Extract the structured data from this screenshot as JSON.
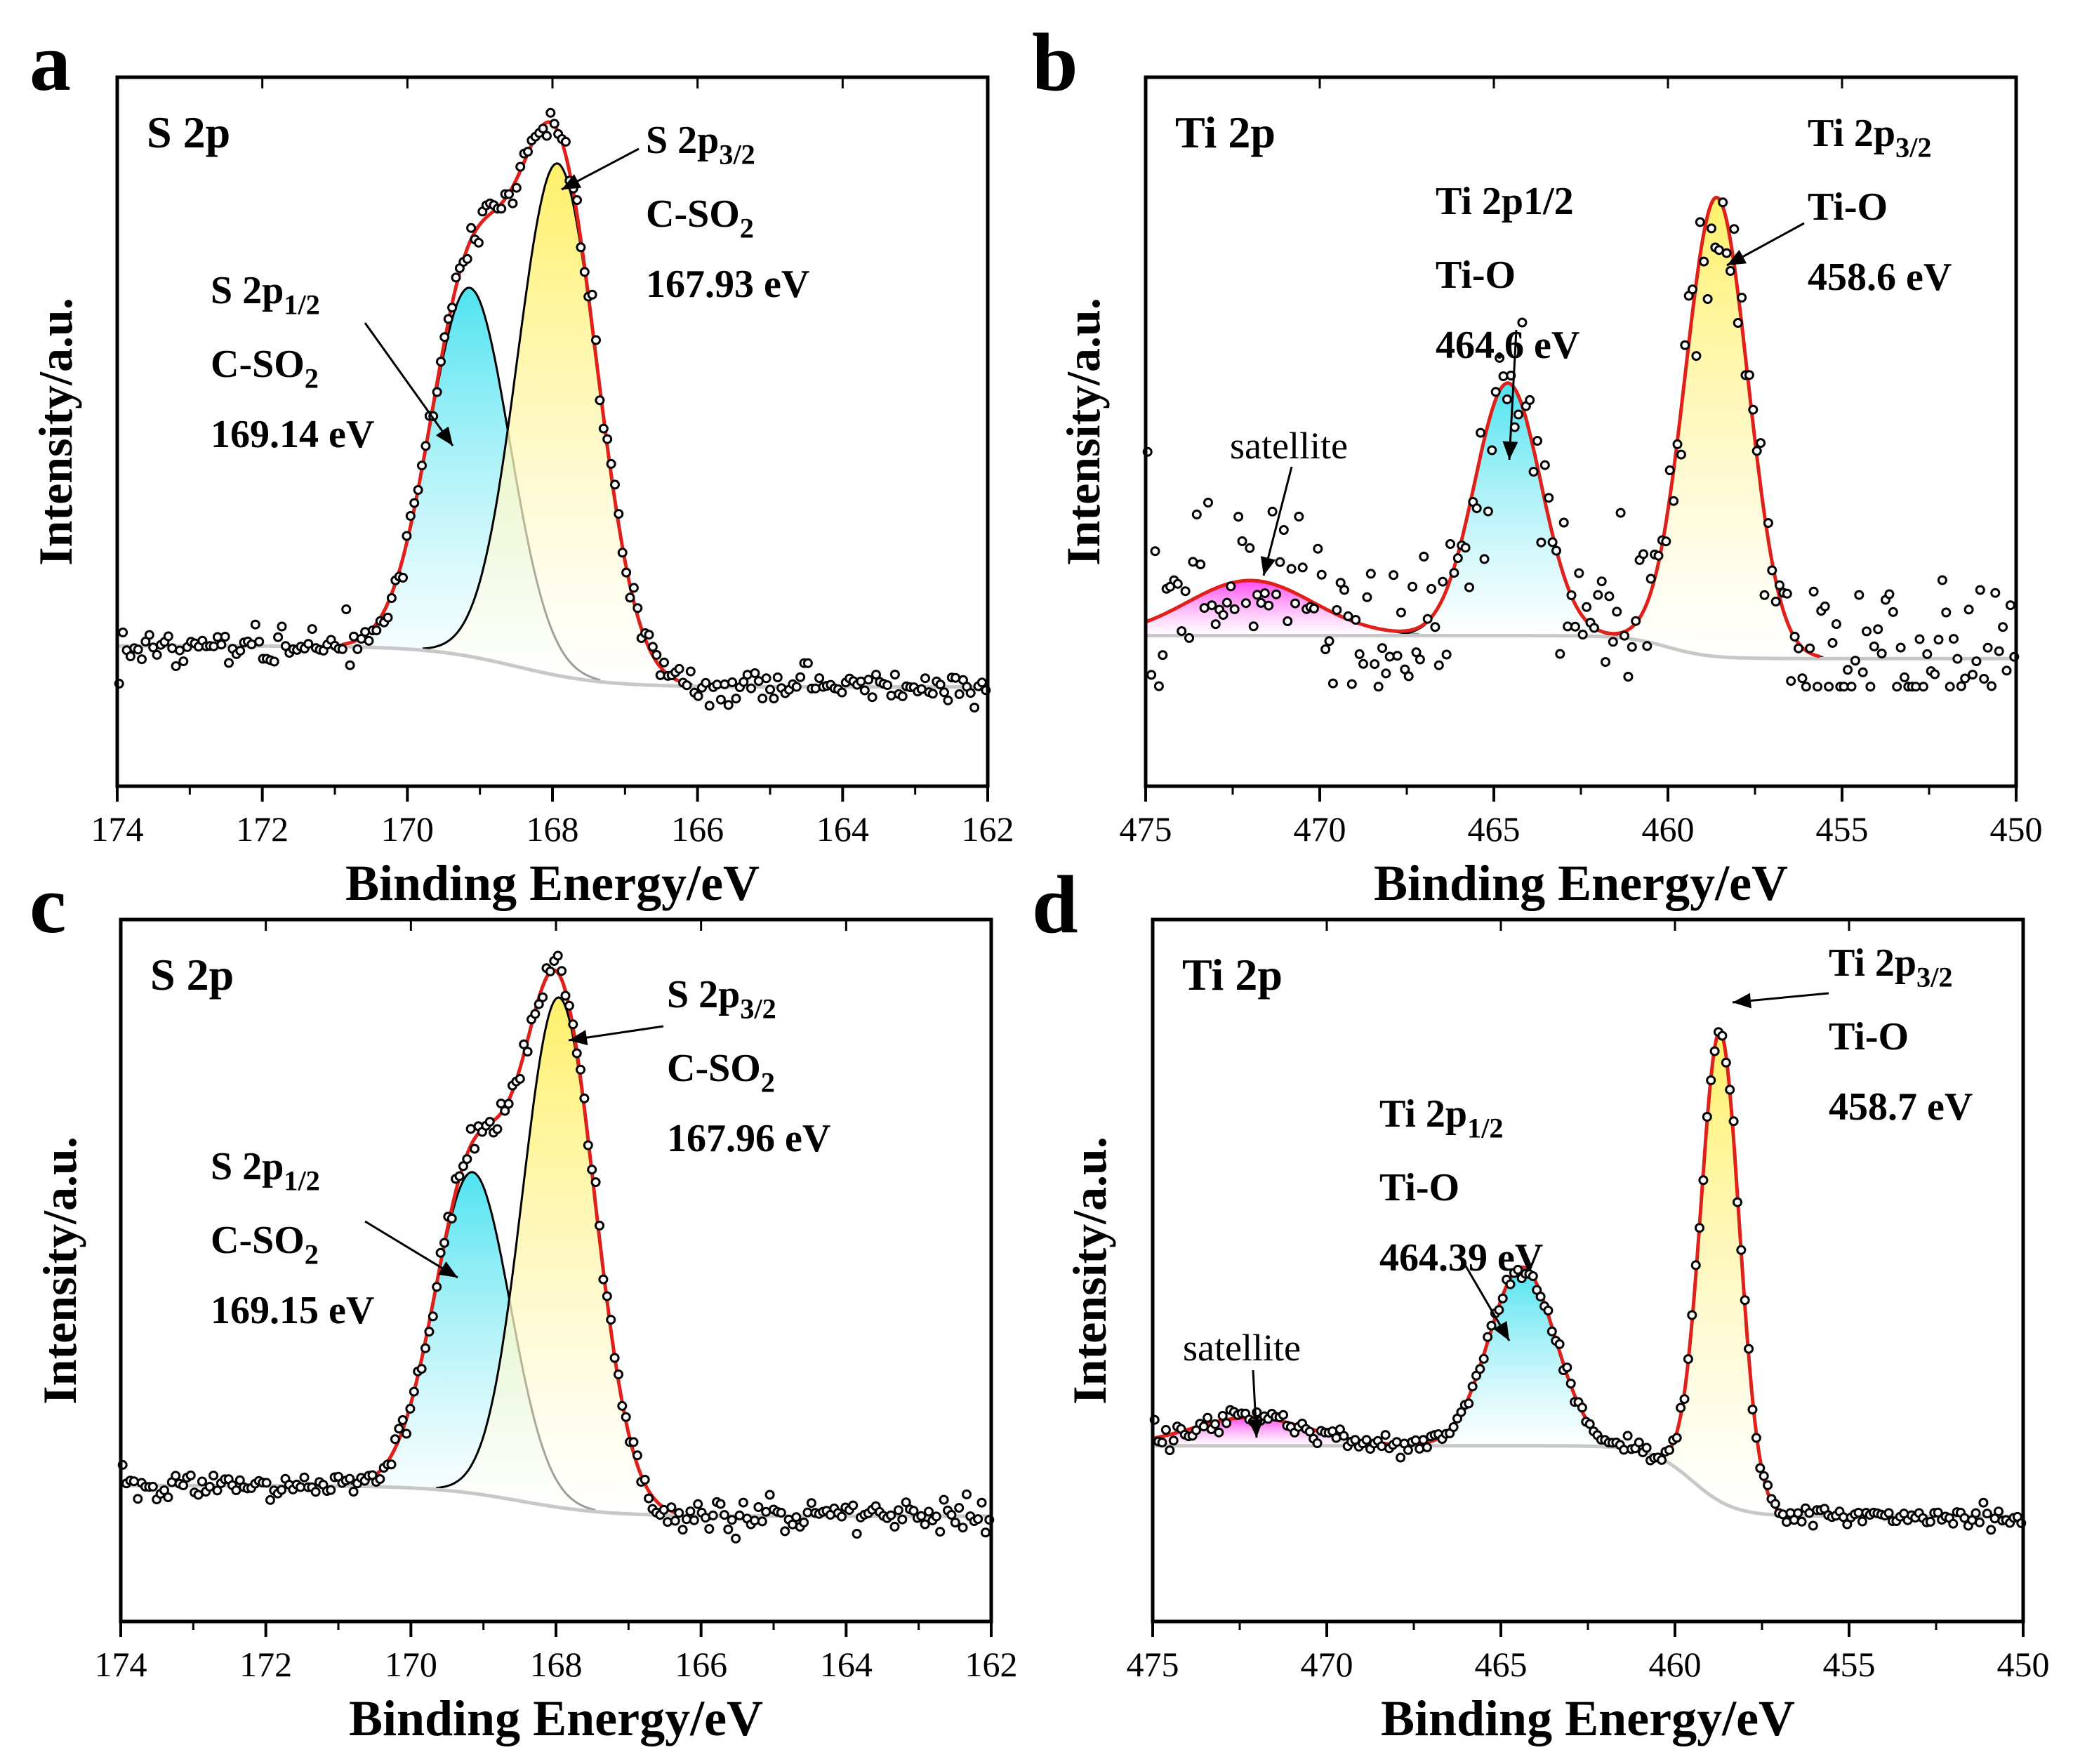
{
  "figure": {
    "panels": [
      "a",
      "b",
      "c",
      "d"
    ]
  },
  "chart_data": [
    {
      "panel": "a",
      "type": "line",
      "title": "S 2p",
      "xlabel": "Binding Energy/eV",
      "ylabel": "Intensity/a.u.",
      "xlim": [
        174,
        162
      ],
      "xticks": [
        174,
        172,
        170,
        168,
        166,
        164,
        162
      ],
      "baseline": {
        "left": 0.08,
        "right": 0.0,
        "step_at": 168.5
      },
      "peaks": [
        {
          "name": "S 2p1/2",
          "center": 169.14,
          "sigma": 0.55,
          "height": 0.72,
          "color": "#4fe3f0"
        },
        {
          "name": "S 2p3/2",
          "center": 167.93,
          "sigma": 0.55,
          "height": 1.0,
          "color": "#fff06a"
        }
      ],
      "noise": 0.018,
      "seed": 11,
      "labels": [
        {
          "main": "S 2p",
          "sub": "3/2",
          "line2": "C-SO",
          "line2sub": "2",
          "line3": "167.93 eV"
        },
        {
          "main": "S 2p",
          "sub": "1/2",
          "line2": "C-SO",
          "line2sub": "2",
          "line3": "169.14 eV"
        }
      ]
    },
    {
      "panel": "b",
      "type": "line",
      "title": "Ti 2p",
      "xlabel": "Binding Energy/eV",
      "ylabel": "Intensity/a.u.",
      "xlim": [
        475,
        450
      ],
      "xticks": [
        475,
        470,
        465,
        460,
        455,
        450
      ],
      "baseline": {
        "left": 0.05,
        "right": 0.0,
        "step_at": 460
      },
      "peaks": [
        {
          "name": "satellite",
          "center": 472.0,
          "sigma": 1.8,
          "height": 0.12,
          "color": "#ff4af0"
        },
        {
          "name": "Ti 2p1/2",
          "center": 464.6,
          "sigma": 0.95,
          "height": 0.55,
          "color": "#4fe3f0"
        },
        {
          "name": "Ti 2p3/2",
          "center": 458.6,
          "sigma": 0.9,
          "height": 1.0,
          "color": "#fff06a"
        }
      ],
      "noise": 0.09,
      "seed": 23,
      "labels": [
        {
          "main": "Ti 2p",
          "sub": "3/2",
          "line2": "Ti-O",
          "line3": "458.6 eV"
        },
        {
          "main": "Ti 2p1/2",
          "line2": "Ti-O",
          "line3": "464.6 eV"
        },
        {
          "main": "satellite"
        }
      ]
    },
    {
      "panel": "c",
      "type": "line",
      "title": "S 2p",
      "xlabel": "Binding Energy/eV",
      "ylabel": "Intensity/a.u.",
      "xlim": [
        174,
        162
      ],
      "xticks": [
        174,
        172,
        170,
        168,
        166,
        164,
        162
      ],
      "baseline": {
        "left": 0.06,
        "right": 0.0,
        "step_at": 168.5
      },
      "peaks": [
        {
          "name": "S 2p1/2",
          "center": 169.15,
          "sigma": 0.52,
          "height": 0.63,
          "color": "#4fe3f0"
        },
        {
          "name": "S 2p3/2",
          "center": 167.96,
          "sigma": 0.5,
          "height": 1.0,
          "color": "#fff06a"
        }
      ],
      "noise": 0.015,
      "seed": 37,
      "labels": [
        {
          "main": "S 2p",
          "sub": "3/2",
          "line2": "C-SO",
          "line2sub": "2",
          "line3": "167.96 eV"
        },
        {
          "main": "S 2p",
          "sub": "1/2",
          "line2": "C-SO",
          "line2sub": "2",
          "line3": "169.15 eV"
        }
      ]
    },
    {
      "panel": "d",
      "type": "line",
      "title": "Ti 2p",
      "xlabel": "Binding Energy/eV",
      "ylabel": "Intensity/a.u.",
      "xlim": [
        475,
        450
      ],
      "xticks": [
        475,
        470,
        465,
        460,
        455,
        450
      ],
      "baseline": {
        "left": 0.15,
        "right": 0.0,
        "step_at": 459.5
      },
      "peaks": [
        {
          "name": "satellite",
          "center": 472.2,
          "sigma": 1.7,
          "height": 0.06,
          "color": "#ff4af0"
        },
        {
          "name": "Ti 2p1/2",
          "center": 464.39,
          "sigma": 0.95,
          "height": 0.38,
          "color": "#4fe3f0"
        },
        {
          "name": "Ti 2p3/2",
          "center": 458.7,
          "sigma": 0.55,
          "height": 1.0,
          "color": "#fff06a"
        }
      ],
      "noise": 0.01,
      "seed": 53,
      "labels": [
        {
          "main": "Ti 2p",
          "sub": "3/2",
          "line2": "Ti-O",
          "line3": "458.7 eV"
        },
        {
          "main": "Ti 2p",
          "sub": "1/2",
          "line2": "Ti-O",
          "line3": "464.39 eV"
        },
        {
          "main": "satellite"
        }
      ]
    }
  ]
}
